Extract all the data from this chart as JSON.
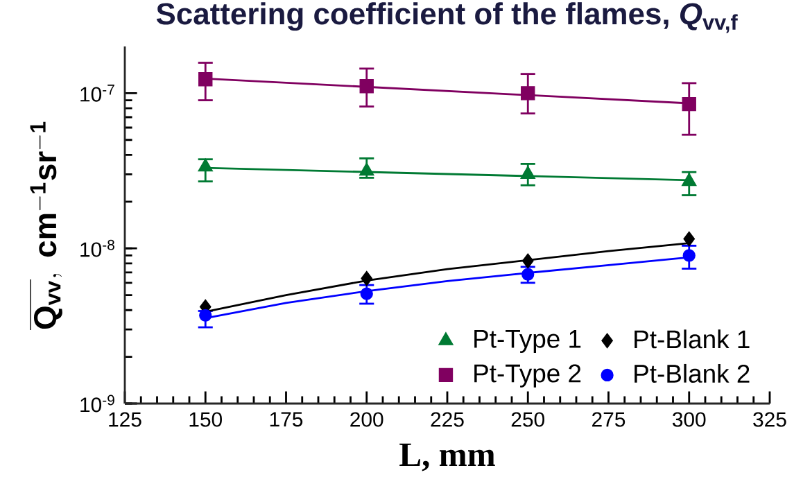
{
  "chart_data": {
    "type": "scatter",
    "title": "Scattering coefficient of the flames, *Q*$_{vv,f}$",
    "xlabel": "L, mm",
    "ylabel": "\\overline{\\mathbf{Q_{vv}}},\\ \\mathbf{cm^{-1}sr^{-1}}",
    "log": "y",
    "xlim": [
      125,
      325
    ],
    "xticks": [
      125,
      150,
      175,
      200,
      225,
      250,
      275,
      300,
      325
    ],
    "ylim": [
      1e-09,
      2e-07
    ],
    "yticks": [
      {
        "value": 1e-09,
        "label": "10$^{-9}$"
      },
      {
        "value": 1e-08,
        "label": "10$^{-8}$"
      },
      {
        "value": 1e-07,
        "label": "10$^{-7}$"
      }
    ],
    "grid": false,
    "legend": "bottom right",
    "x": [
      150,
      200,
      250,
      300
    ],
    "series": [
      {
        "name": "Pt-Type 1",
        "color": "#007a33",
        "marker": "triangle",
        "values": [
          3.35e-08,
          3.15e-08,
          3e-08,
          2.7e-08
        ],
        "errors": [
          [
            2.7e-08,
            3.75e-08
          ],
          [
            2.85e-08,
            3.8e-08
          ],
          [
            2.55e-08,
            3.5e-08
          ],
          [
            2.2e-08,
            3.1e-08
          ]
        ]
      },
      {
        "name": "Pt-Blank 1",
        "color": "#000000",
        "marker": "diamond",
        "values": [
          4.2e-09,
          6.4e-09,
          8.3e-09,
          1.15e-08
        ]
      },
      {
        "name": "Pt-Type 2",
        "color": "#800060",
        "marker": "square",
        "values": [
          1.23e-07,
          1.11e-07,
          1e-07,
          8.5e-08
        ],
        "errors": [
          [
            9e-08,
            1.57e-07
          ],
          [
            8.2e-08,
            1.44e-07
          ],
          [
            7.4e-08,
            1.33e-07
          ],
          [
            5.4e-08,
            1.16e-07
          ]
        ]
      },
      {
        "name": "Pt-Blank 2",
        "color": "#0000ff",
        "marker": "circle",
        "values": [
          3.7e-09,
          5.1e-09,
          6.8e-09,
          9e-09
        ],
        "errors": [
          [
            3.1e-09,
            3.95e-09
          ],
          [
            4.4e-09,
            5.8e-09
          ],
          [
            6e-09,
            7.6e-09
          ],
          [
            7.4e-09,
            1.04e-08
          ]
        ]
      },
      {
        "type": "line",
        "color": "#007a33",
        "marker": "none",
        "x": [
          150,
          300
        ],
        "values": [
          3.3e-08,
          2.75e-08
        ]
      },
      {
        "type": "line",
        "color": "#000000",
        "marker": "none",
        "x": [
          150,
          175,
          200,
          225,
          250,
          275,
          300
        ],
        "values": [
          3.9e-09,
          5e-09,
          6.2e-09,
          7.35e-09,
          8.4e-09,
          9.6e-09,
          1.08e-08
        ]
      },
      {
        "type": "line",
        "color": "#800060",
        "marker": "none",
        "x": [
          150,
          300
        ],
        "values": [
          1.24e-07,
          8.6e-08
        ]
      },
      {
        "type": "line",
        "color": "#0000ff",
        "marker": "none",
        "x": [
          150,
          175,
          200,
          225,
          250,
          275,
          300
        ],
        "values": [
          3.55e-09,
          4.45e-09,
          5.3e-09,
          6.15e-09,
          6.95e-09,
          7.8e-09,
          8.75e-09
        ]
      }
    ]
  }
}
